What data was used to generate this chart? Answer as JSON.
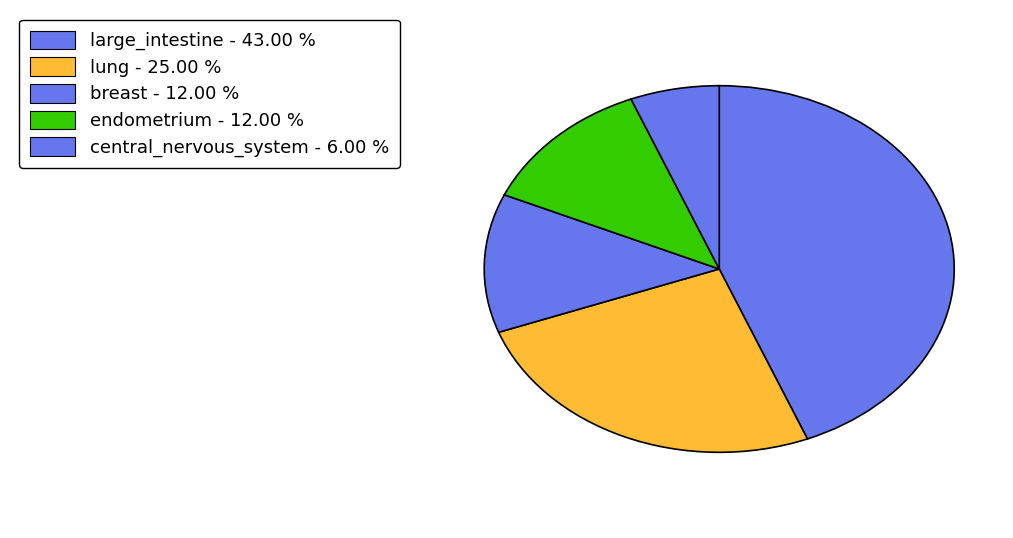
{
  "labels": [
    "large_intestine",
    "lung",
    "breast",
    "endometrium",
    "central_nervous_system"
  ],
  "values": [
    43.0,
    25.0,
    12.0,
    12.0,
    6.0
  ],
  "colors": [
    "#6677ee",
    "#ffbb33",
    "#6677ee",
    "#33cc00",
    "#6677ee"
  ],
  "legend_labels": [
    "large_intestine - 43.00 %",
    "lung - 25.00 %",
    "breast - 12.00 %",
    "endometrium - 12.00 %",
    "central_nervous_system - 6.00 %"
  ],
  "startangle": 90,
  "counterclock": false,
  "figsize": [
    10.13,
    5.38
  ],
  "dpi": 100,
  "legend_fontsize": 13
}
